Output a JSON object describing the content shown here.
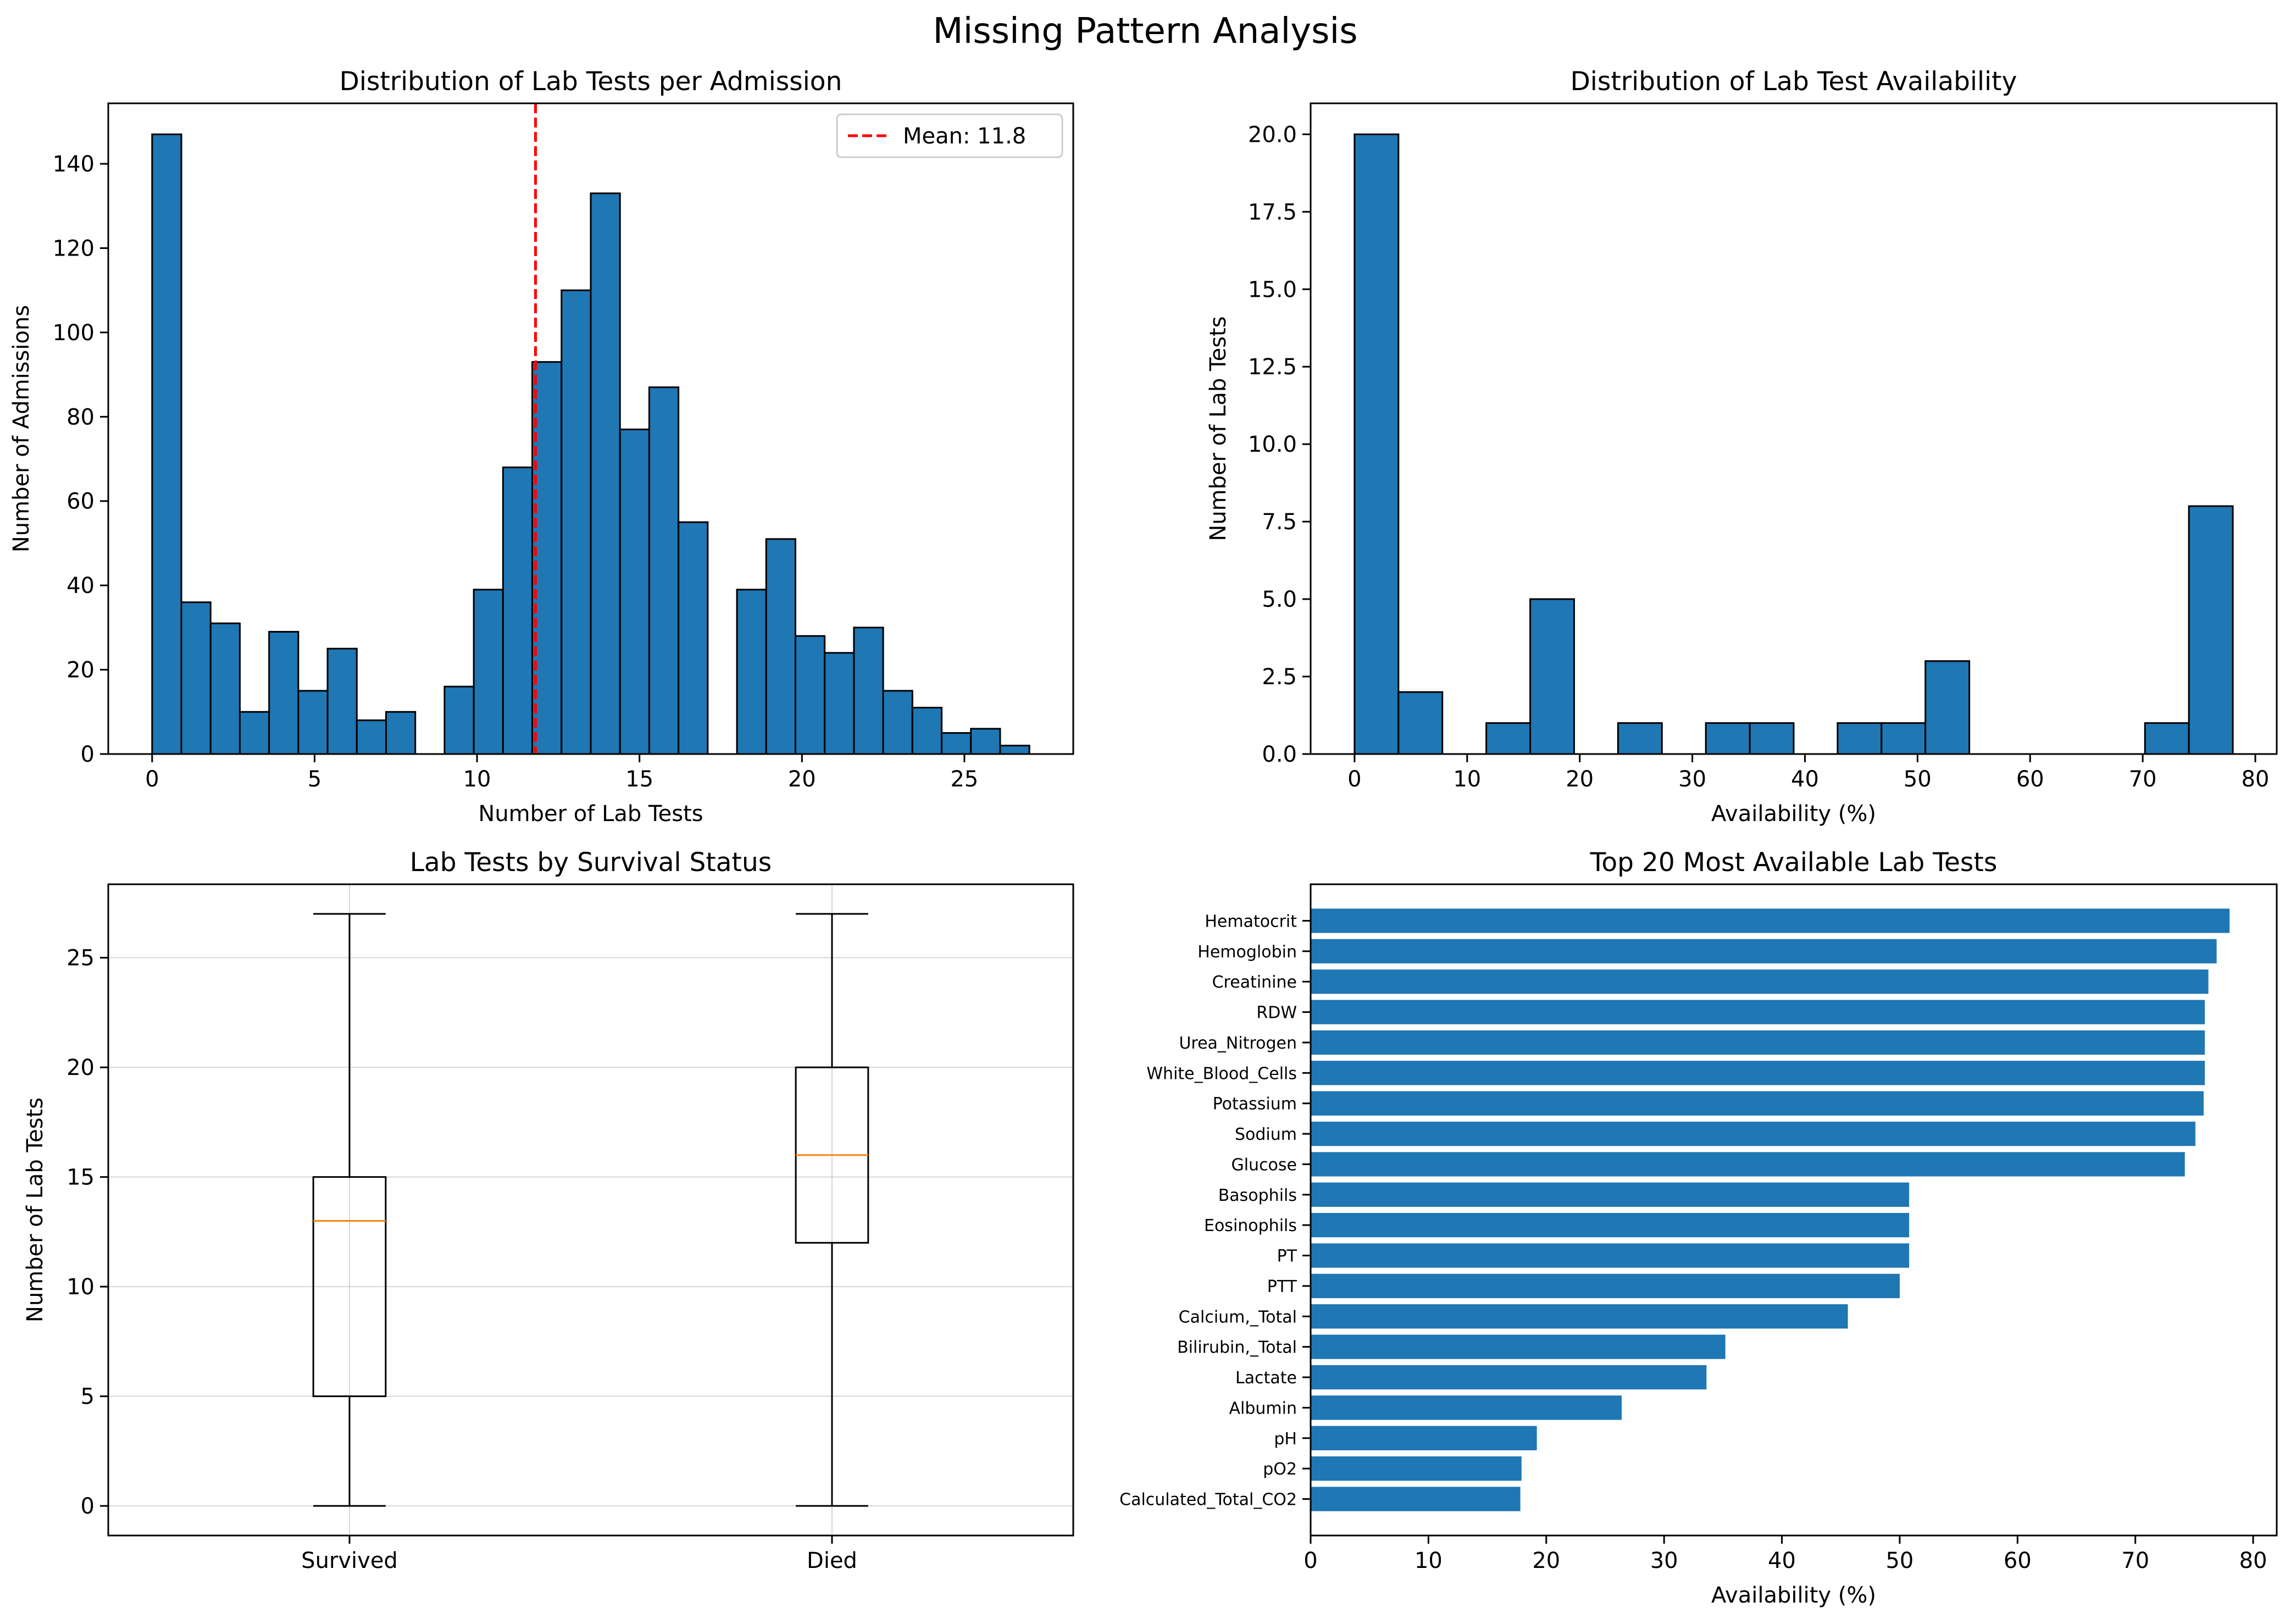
{
  "suptitle": "Missing Pattern Analysis",
  "colors": {
    "bar": "#1f77b4",
    "median": "#ff7f0e",
    "mean_line": "#ff0000",
    "edge": "#000000",
    "grid": "#b0b0b0"
  },
  "chart_data": [
    {
      "id": "hist_admissions",
      "type": "bar",
      "title": "Distribution of Lab Tests per Admission",
      "xlabel": "Number of Lab Tests",
      "ylabel": "Number of Admissions",
      "xlim": [
        -1.35,
        28.35
      ],
      "ylim": [
        0,
        154.35
      ],
      "xticks": [
        0,
        5,
        10,
        15,
        20,
        25
      ],
      "yticks": [
        0,
        20,
        40,
        60,
        80,
        100,
        120,
        140
      ],
      "bin_width": 0.9,
      "bins": [
        {
          "x0": 0.0,
          "count": 147
        },
        {
          "x0": 0.9,
          "count": 36
        },
        {
          "x0": 1.8,
          "count": 31
        },
        {
          "x0": 2.7,
          "count": 10
        },
        {
          "x0": 3.6,
          "count": 29
        },
        {
          "x0": 4.5,
          "count": 15
        },
        {
          "x0": 5.4,
          "count": 25
        },
        {
          "x0": 6.3,
          "count": 8
        },
        {
          "x0": 7.2,
          "count": 10
        },
        {
          "x0": 8.1,
          "count": 0
        },
        {
          "x0": 9.0,
          "count": 16
        },
        {
          "x0": 9.9,
          "count": 39
        },
        {
          "x0": 10.8,
          "count": 68
        },
        {
          "x0": 11.7,
          "count": 93
        },
        {
          "x0": 12.6,
          "count": 110
        },
        {
          "x0": 13.5,
          "count": 133
        },
        {
          "x0": 14.4,
          "count": 77
        },
        {
          "x0": 15.3,
          "count": 87
        },
        {
          "x0": 16.2,
          "count": 55
        },
        {
          "x0": 17.1,
          "count": 0
        },
        {
          "x0": 18.0,
          "count": 39
        },
        {
          "x0": 18.9,
          "count": 51
        },
        {
          "x0": 19.8,
          "count": 28
        },
        {
          "x0": 20.7,
          "count": 24
        },
        {
          "x0": 21.6,
          "count": 30
        },
        {
          "x0": 22.5,
          "count": 15
        },
        {
          "x0": 23.4,
          "count": 11
        },
        {
          "x0": 24.3,
          "count": 5
        },
        {
          "x0": 25.2,
          "count": 6
        },
        {
          "x0": 26.1,
          "count": 2
        }
      ],
      "mean": 11.8,
      "legend": {
        "label": "Mean: 11.8",
        "location": "upper right"
      }
    },
    {
      "id": "hist_availability",
      "type": "bar",
      "title": "Distribution of Lab Test Availability",
      "xlabel": "Availability (%)",
      "ylabel": "Number of Lab Tests",
      "xlim": [
        -3.9,
        81.9
      ],
      "ylim": [
        0,
        21.0
      ],
      "xticks": [
        0,
        10,
        20,
        30,
        40,
        50,
        60,
        70,
        80
      ],
      "yticks": [
        0.0,
        2.5,
        5.0,
        7.5,
        10.0,
        12.5,
        15.0,
        17.5,
        20.0
      ],
      "ytick_labels": [
        "0.0",
        "2.5",
        "5.0",
        "7.5",
        "10.0",
        "12.5",
        "15.0",
        "17.5",
        "20.0"
      ],
      "bin_width": 3.9,
      "bins": [
        {
          "x0": 0.0,
          "count": 20
        },
        {
          "x0": 3.9,
          "count": 2
        },
        {
          "x0": 7.8,
          "count": 0
        },
        {
          "x0": 11.7,
          "count": 1
        },
        {
          "x0": 15.6,
          "count": 5
        },
        {
          "x0": 19.5,
          "count": 0
        },
        {
          "x0": 23.4,
          "count": 1
        },
        {
          "x0": 27.3,
          "count": 0
        },
        {
          "x0": 31.2,
          "count": 1
        },
        {
          "x0": 35.1,
          "count": 1
        },
        {
          "x0": 39.0,
          "count": 0
        },
        {
          "x0": 42.9,
          "count": 1
        },
        {
          "x0": 46.8,
          "count": 1
        },
        {
          "x0": 50.7,
          "count": 3
        },
        {
          "x0": 54.6,
          "count": 0
        },
        {
          "x0": 58.5,
          "count": 0
        },
        {
          "x0": 62.4,
          "count": 0
        },
        {
          "x0": 66.3,
          "count": 0
        },
        {
          "x0": 70.2,
          "count": 1
        },
        {
          "x0": 74.1,
          "count": 8
        }
      ]
    },
    {
      "id": "box_survival",
      "type": "box",
      "title": "Lab Tests by Survival Status",
      "xlabel": "",
      "ylabel": "Number of Lab Tests",
      "ylim": [
        -1.35,
        28.35
      ],
      "yticks": [
        0,
        5,
        10,
        15,
        20,
        25
      ],
      "grid": true,
      "boxes": [
        {
          "label": "Survived",
          "position": 1,
          "whisker_low": 0,
          "q1": 5,
          "median": 13,
          "q3": 15,
          "whisker_high": 27
        },
        {
          "label": "Died",
          "position": 2,
          "whisker_low": 0,
          "q1": 12,
          "median": 16,
          "q3": 20,
          "whisker_high": 27
        }
      ]
    },
    {
      "id": "barh_top20",
      "type": "bar",
      "orientation": "horizontal",
      "title": "Top 20 Most Available Lab Tests",
      "xlabel": "Availability (%)",
      "ylabel": "",
      "xlim": [
        0,
        82
      ],
      "xticks": [
        0,
        10,
        20,
        30,
        40,
        50,
        60,
        70,
        80
      ],
      "categories": [
        "Hematocrit",
        "Hemoglobin",
        "Creatinine",
        "RDW",
        "Urea_Nitrogen",
        "White_Blood_Cells",
        "Potassium",
        "Sodium",
        "Glucose",
        "Basophils",
        "Eosinophils",
        "PT",
        "PTT",
        "Calcium,_Total",
        "Bilirubin,_Total",
        "Lactate",
        "Albumin",
        "pH",
        "pO2",
        "Calculated_Total_CO2"
      ],
      "values": [
        78.0,
        76.9,
        76.2,
        75.9,
        75.9,
        75.9,
        75.8,
        75.1,
        74.2,
        50.8,
        50.8,
        50.8,
        50.0,
        45.6,
        35.2,
        33.6,
        26.4,
        19.2,
        17.9,
        17.8
      ]
    }
  ]
}
